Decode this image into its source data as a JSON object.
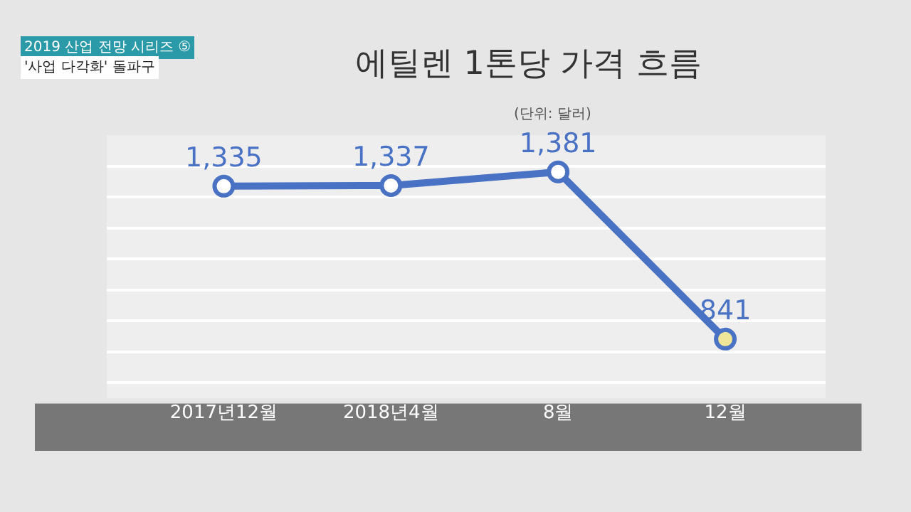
{
  "chart_data": {
    "type": "line",
    "title": "에틸렌 1톤당 가격 흐름",
    "subtitle": "(단위: 달러)",
    "annotations": [
      "2019 산업 전망 시리즈 ⑤",
      "'사업 다각화' 돌파구"
    ],
    "categories": [
      "2017년12월",
      "2018년4월",
      "8월",
      "12월"
    ],
    "series": [
      {
        "color": "#4a72c4",
        "values": [
          1335,
          1337,
          1381,
          841
        ],
        "value_labels": [
          "1,335",
          "1,337",
          "1,381",
          "841"
        ],
        "colors": [
          "#ffffff",
          "#ffffff",
          "#ffffff",
          "#f0e69a"
        ]
      }
    ],
    "data_labels": true,
    "marker": "circle",
    "line_style": "solid",
    "grid": "y",
    "tick_labels": "x"
  }
}
